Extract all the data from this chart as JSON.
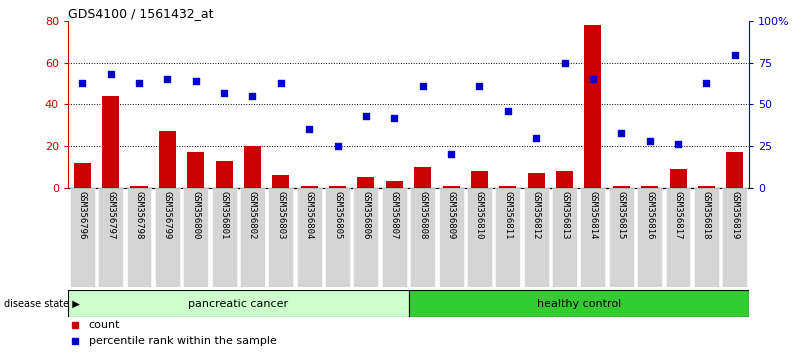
{
  "title": "GDS4100 / 1561432_at",
  "samples": [
    "GSM356796",
    "GSM356797",
    "GSM356798",
    "GSM356799",
    "GSM356800",
    "GSM356801",
    "GSM356802",
    "GSM356803",
    "GSM356804",
    "GSM356805",
    "GSM356806",
    "GSM356807",
    "GSM356808",
    "GSM356809",
    "GSM356810",
    "GSM356811",
    "GSM356812",
    "GSM356813",
    "GSM356814",
    "GSM356815",
    "GSM356816",
    "GSM356817",
    "GSM356818",
    "GSM356819"
  ],
  "counts": [
    12,
    44,
    1,
    27,
    17,
    13,
    20,
    6,
    1,
    1,
    5,
    3,
    10,
    1,
    8,
    1,
    7,
    8,
    78,
    1,
    1,
    9,
    1,
    17
  ],
  "percentiles": [
    63,
    68,
    63,
    65,
    64,
    57,
    55,
    63,
    35,
    25,
    43,
    42,
    61,
    20,
    61,
    46,
    30,
    75,
    65,
    33,
    28,
    26,
    63,
    80
  ],
  "bar_color": "#cc0000",
  "dot_color": "#0000cc",
  "pancreatic_cancer_count": 12,
  "healthy_control_count": 12,
  "group1_label": "pancreatic cancer",
  "group2_label": "healthy control",
  "disease_state_label": "disease state",
  "group1_color": "#ccffcc",
  "group2_color": "#33cc33",
  "ylim_left": [
    0,
    80
  ],
  "ylim_right": [
    0,
    100
  ],
  "yticks_left": [
    0,
    20,
    40,
    60,
    80
  ],
  "yticks_right": [
    0,
    25,
    50,
    75,
    100
  ],
  "ytick_labels_right": [
    "0",
    "25",
    "50",
    "75",
    "100%"
  ],
  "legend_count_label": "count",
  "legend_percentile_label": "percentile rank within the sample"
}
